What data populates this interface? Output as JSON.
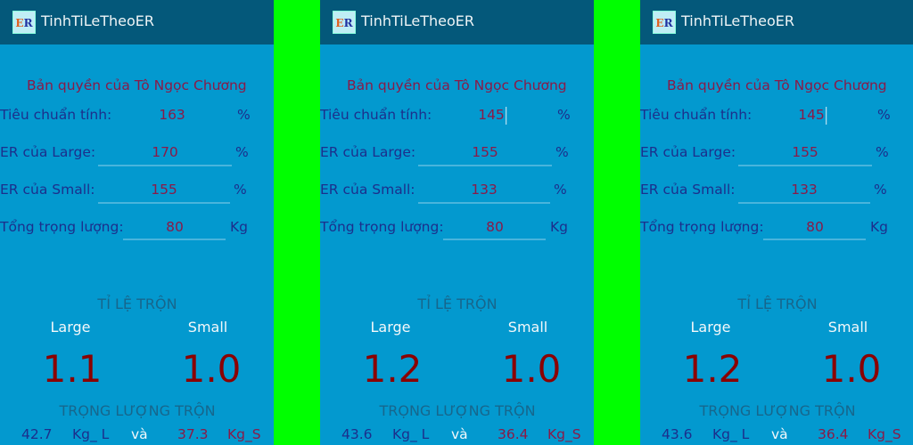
{
  "app_title": "TinhTiLeTheoER",
  "icon_text": "ER",
  "copyright": "Bản quyền của Tô Ngọc Chương",
  "labels": {
    "standard": "Tiêu chuẩn tính:",
    "er_large": "ER của Large:",
    "er_small": "ER của Small:",
    "total_weight": "Tổng trọng lượng:",
    "percent": "%",
    "kg": "Kg",
    "mix_ratio": "TỈ LỆ TRỘN",
    "large": "Large",
    "small": "Small",
    "mix_weight": "TRỌNG LƯỢNG TRỘN",
    "kg_l": "Kg_ L",
    "and": "và",
    "kg_s": "Kg_S"
  },
  "colors": {
    "header": "#04587a",
    "body": "#0399cf",
    "separator": "#00ff00",
    "ratio": "#8b0000"
  },
  "panels": [
    {
      "standard": "163",
      "er_large": "170",
      "er_small": "155",
      "total_weight": "80",
      "ratio_large": "1.1",
      "ratio_small": "1.0",
      "weight_large": "42.7",
      "weight_small": "37.3",
      "cursor": false
    },
    {
      "standard": "145",
      "er_large": "155",
      "er_small": "133",
      "total_weight": "80",
      "ratio_large": "1.2",
      "ratio_small": "1.0",
      "weight_large": "43.6",
      "weight_small": "36.4",
      "cursor": true
    },
    {
      "standard": "145",
      "er_large": "155",
      "er_small": "133",
      "total_weight": "80",
      "ratio_large": "1.2",
      "ratio_small": "1.0",
      "weight_large": "43.6",
      "weight_small": "36.4",
      "cursor": true
    }
  ]
}
